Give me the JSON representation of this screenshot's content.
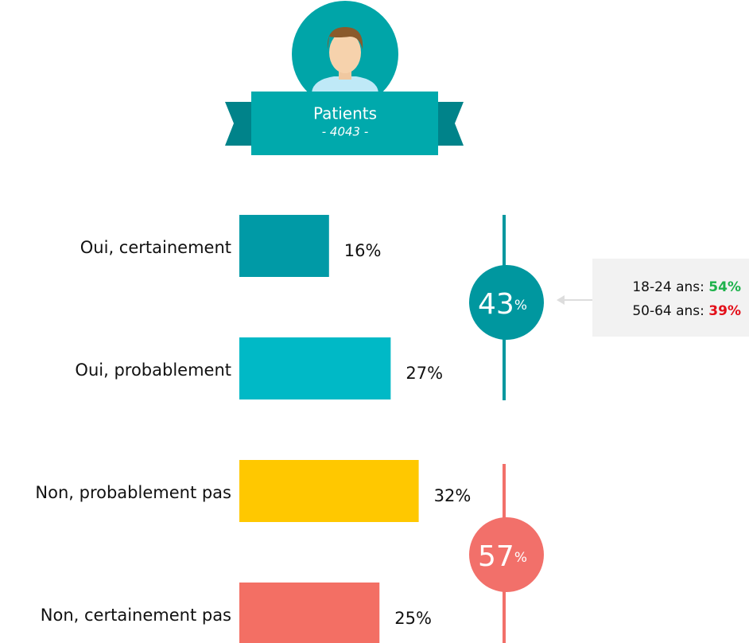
{
  "header": {
    "title": "Patients",
    "subtitle": "- 4043 -"
  },
  "chart_data": {
    "type": "bar",
    "orientation": "horizontal",
    "categories": [
      "Oui, certainement",
      "Oui, probablement",
      "Non, probablement pas",
      "Non, certainement pas"
    ],
    "values": [
      16,
      27,
      32,
      25
    ],
    "value_labels": [
      "16%",
      "27%",
      "32%",
      "25%"
    ],
    "colors": [
      "#009aa6",
      "#00b9c6",
      "#ffc800",
      "#f36f64"
    ],
    "groups": [
      {
        "value": 43,
        "unit": "%",
        "color": "#00979f",
        "callout": [
          {
            "label": "18-24 ans:",
            "value": 54,
            "value_label": "54%",
            "color": "#1db24b"
          },
          {
            "label": "50-64 ans:",
            "value": 39,
            "value_label": "39%",
            "color": "#e3101a"
          }
        ]
      },
      {
        "value": 57,
        "unit": "%",
        "color": "#f2706a"
      }
    ]
  }
}
